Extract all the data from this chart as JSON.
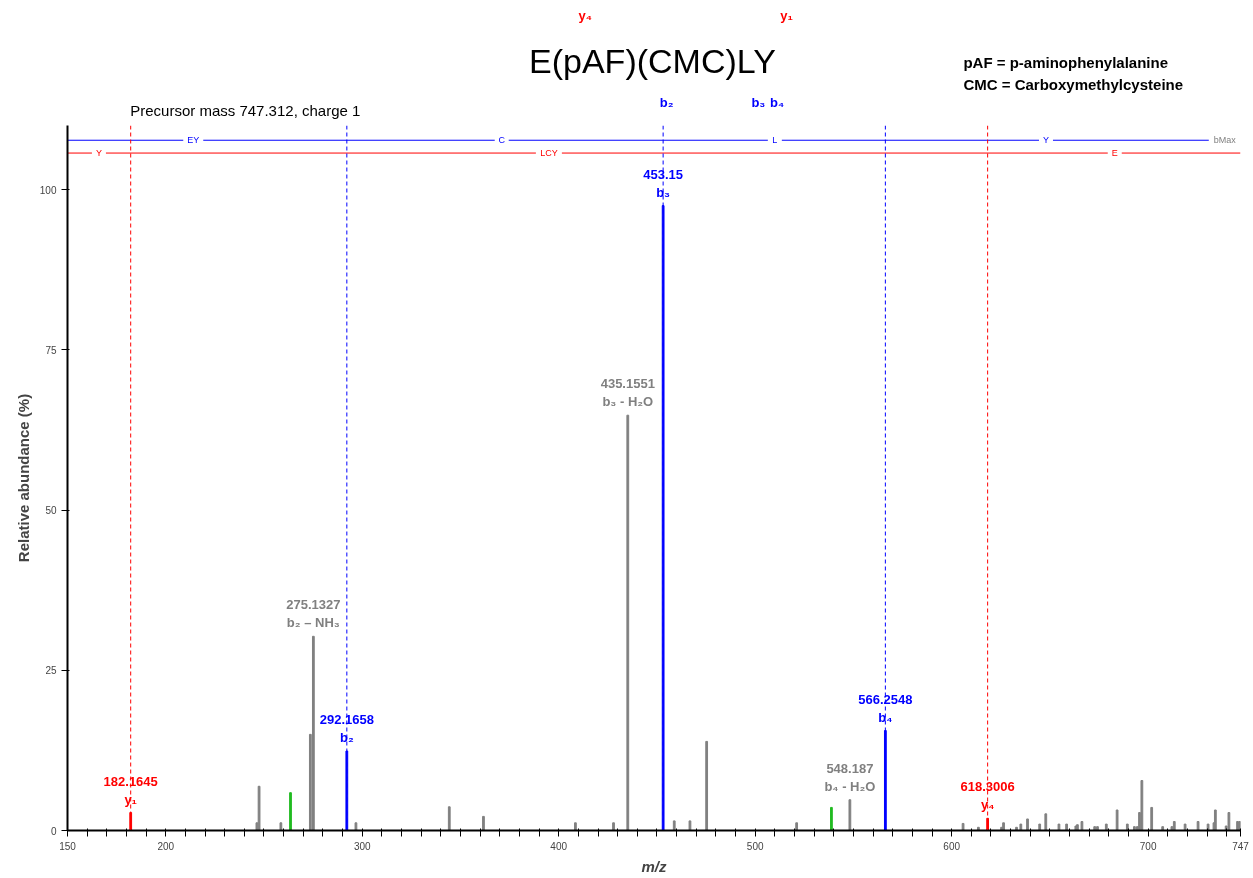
{
  "chart_data": {
    "type": "bar",
    "title": "E(pAF)(CMC)LY",
    "subtitle": "Precursor mass 747.312, charge 1",
    "xlabel": "m/z",
    "ylabel": "Relative abundance (%)",
    "xlim": [
      150,
      747
    ],
    "ylim": [
      0,
      110
    ],
    "xticks": [
      150,
      {
        "value": 160,
        "label": null
      },
      {
        "value": 170,
        "label": null
      },
      {
        "value": 180,
        "label": null
      },
      {
        "value": 190,
        "label": null
      },
      200,
      {
        "value": 210,
        "label": null
      },
      {
        "value": 220,
        "label": null
      },
      {
        "value": 230,
        "label": null
      },
      {
        "value": 240,
        "label": null
      },
      {
        "value": 250,
        "label": null
      },
      {
        "value": 260,
        "label": null
      },
      {
        "value": 270,
        "label": null
      },
      {
        "value": 280,
        "label": null
      },
      {
        "value": 290,
        "label": null
      },
      300,
      {
        "value": 310,
        "label": null
      },
      {
        "value": 320,
        "label": null
      },
      {
        "value": 330,
        "label": null
      },
      {
        "value": 340,
        "label": null
      },
      {
        "value": 350,
        "label": null
      },
      {
        "value": 360,
        "label": null
      },
      {
        "value": 370,
        "label": null
      },
      {
        "value": 380,
        "label": null
      },
      {
        "value": 390,
        "label": null
      },
      400,
      {
        "value": 410,
        "label": null
      },
      {
        "value": 420,
        "label": null
      },
      {
        "value": 430,
        "label": null
      },
      {
        "value": 440,
        "label": null
      },
      {
        "value": 450,
        "label": null
      },
      {
        "value": 460,
        "label": null
      },
      {
        "value": 470,
        "label": null
      },
      {
        "value": 480,
        "label": null
      },
      {
        "value": 490,
        "label": null
      },
      500,
      {
        "value": 510,
        "label": null
      },
      {
        "value": 520,
        "label": null
      },
      {
        "value": 530,
        "label": null
      },
      {
        "value": 540,
        "label": null
      },
      {
        "value": 550,
        "label": null
      },
      {
        "value": 560,
        "label": null
      },
      {
        "value": 570,
        "label": null
      },
      {
        "value": 580,
        "label": null
      },
      {
        "value": 590,
        "label": null
      },
      600,
      {
        "value": 610,
        "label": null
      },
      {
        "value": 620,
        "label": null
      },
      {
        "value": 630,
        "label": null
      },
      {
        "value": 640,
        "label": null
      },
      {
        "value": 650,
        "label": null
      },
      {
        "value": 660,
        "label": null
      },
      {
        "value": 670,
        "label": null
      },
      {
        "value": 680,
        "label": null
      },
      {
        "value": 690,
        "label": null
      },
      700,
      {
        "value": 710,
        "label": null
      },
      {
        "value": 720,
        "label": null
      },
      {
        "value": 730,
        "label": null
      },
      {
        "value": 740,
        "label": null
      },
      747
    ],
    "yticks": [
      0,
      25,
      50,
      75,
      100
    ],
    "series": [
      {
        "color": "#808080",
        "x": [
          246.4,
          247.5,
          258.6,
          273.6,
          275.13,
          296.8,
          344.3,
          361.7,
          408.5,
          427.9,
          435.16,
          458.8,
          466.8,
          475.3,
          521.1,
          548.19,
          605.8,
          613.6,
          625.4,
          626.4,
          633,
          635.2,
          638.6,
          644.8,
          647.9,
          654.6,
          658.5,
          663.2,
          664,
          666.3,
          672.8,
          674.2,
          678.7,
          684.2,
          689.4,
          693,
          694.5,
          695.6,
          696.8,
          701.8,
          707.4,
          712.1,
          713.3,
          718.8,
          725.4,
          730.5,
          733.5,
          734.2,
          739.7,
          741.1,
          745.5,
          746.7
        ],
        "values": [
          1.2,
          6.9,
          1.2,
          15.0,
          30.3,
          1.2,
          3.7,
          2.2,
          1.2,
          1.2,
          64.8,
          1.5,
          1.5,
          13.9,
          1.2,
          4.8,
          1.1,
          0.5,
          0.5,
          1.2,
          0.5,
          1.0,
          1.8,
          1.0,
          2.6,
          1.0,
          1.0,
          0.7,
          0.9,
          1.4,
          0.6,
          0.6,
          1.0,
          3.2,
          1.0,
          0.6,
          0.6,
          2.8,
          7.8,
          3.6,
          0.6,
          0.6,
          1.4,
          1.0,
          1.4,
          1.0,
          1.2,
          3.2,
          0.7,
          2.8,
          1.4,
          1.4
        ]
      },
      {
        "color": "#22bb22",
        "x": [
          263.5,
          538.8
        ],
        "values": [
          5.9,
          3.6
        ]
      },
      {
        "color": "#0000ff",
        "x": [
          292.1658,
          453.15,
          566.2548
        ],
        "values": [
          12.4,
          97.5,
          15.6
        ]
      },
      {
        "color": "#ff0000",
        "x": [
          182.1645,
          618.3006
        ],
        "values": [
          2.8,
          1.9
        ]
      },
      {
        "type": "line",
        "color": "#0000ff",
        "x": [
          150,
          731
        ],
        "values": [
          107.7,
          107.7
        ]
      },
      {
        "type": "line",
        "color": "#ff0000",
        "x": [
          150,
          747
        ],
        "values": [
          105.7,
          105.7
        ]
      }
    ],
    "ref_lines": [
      {
        "axis": "x",
        "value": 182.1645,
        "label": null,
        "color": "#ff0000",
        "line_style": "dashed"
      },
      {
        "axis": "x",
        "value": 292.1658,
        "label": null,
        "color": "#0000ff",
        "line_style": "dashed"
      },
      {
        "axis": "x",
        "value": 453.15,
        "label": null,
        "color": "#0000ff",
        "line_style": "dashed"
      },
      {
        "axis": "x",
        "value": 566.2548,
        "label": null,
        "color": "#0000ff",
        "line_style": "dashed"
      },
      {
        "axis": "x",
        "value": 618.3006,
        "label": null,
        "color": "#ff0000",
        "line_style": "dashed"
      }
    ],
    "annotations": [
      "y₄",
      "y₁",
      "b₂",
      "b₃",
      "b₄",
      "pAF = p-aminophenylalanine",
      "CMC = Carboxymethylcysteine",
      {
        "text": "182.1645\ny₁",
        "x": 182.1645,
        "y": 2.8
      },
      {
        "text": "275.1327\nb₂ – NH₃",
        "x": 275.13,
        "y": 30.3
      },
      {
        "text": "292.1658\nb₂",
        "x": 292.1658,
        "y": 12.4
      },
      {
        "text": "435.1551\nb₃ - H₂O",
        "x": 435.16,
        "y": 64.8
      },
      {
        "text": "453.15\nb₃",
        "x": 453.15,
        "y": 97.5
      },
      {
        "text": "548.187\nb₄ - H₂O",
        "x": 548.19,
        "y": 4.8
      },
      {
        "text": "566.2548\nb₄",
        "x": 566.2548,
        "y": 15.6
      },
      {
        "text": "618.3006\ny₄",
        "x": 618.3006,
        "y": 1.9
      },
      {
        "text": "EY",
        "x": 214,
        "y": 107.7
      },
      {
        "text": "C",
        "x": 371,
        "y": 107.7
      },
      {
        "text": "L",
        "x": 510,
        "y": 107.7
      },
      {
        "text": "Y",
        "x": 648,
        "y": 107.7
      },
      {
        "text": "bMax",
        "x": 739,
        "y": 107.7
      },
      {
        "text": "Y",
        "x": 166,
        "y": 105.7
      },
      {
        "text": "LCY",
        "x": 395,
        "y": 105.7
      },
      {
        "text": "E",
        "x": 683,
        "y": 105.7
      }
    ]
  }
}
